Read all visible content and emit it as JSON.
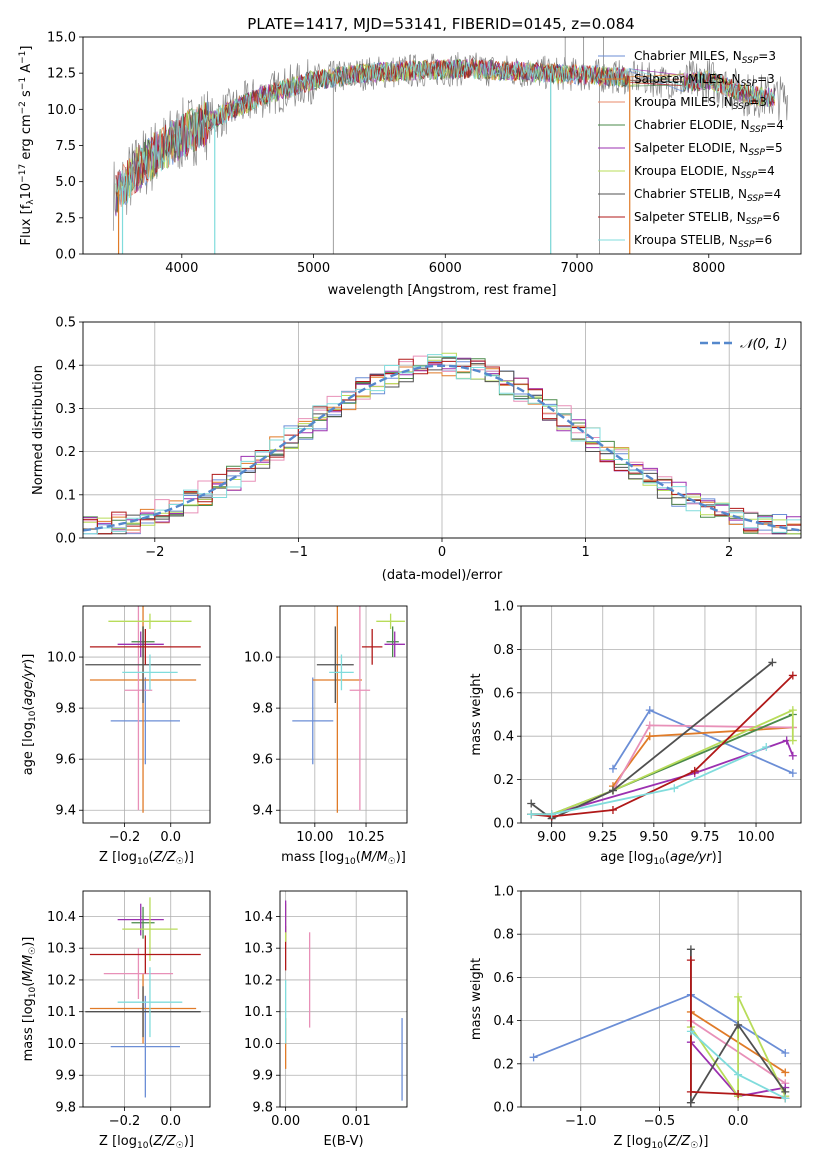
{
  "title": "PLATE=1417, MJD=53141, FIBERID=0145, z=0.084",
  "colors": {
    "blue": "#6b8ed6",
    "orange": "#e07b28",
    "salmon": "#e8896a",
    "gray": "#808080",
    "purple": "#9b30b0",
    "lime": "#b8dc5a",
    "dark": "#505050",
    "red": "#b01818",
    "cyan": "#80dcdc",
    "green": "#4a8a4a",
    "pink": "#e890b8",
    "ygreen": "#8ad040"
  },
  "chart_data": [
    {
      "id": "spectrum",
      "type": "line",
      "xlabel": "wavelength [Angstrom, rest frame]",
      "ylabel": "Flux [f_λ10^-17 erg cm^-2 s^-1 A^-1]",
      "xlim": [
        3250,
        8700
      ],
      "ylim": [
        0,
        15
      ],
      "xticks": [
        4000,
        5000,
        6000,
        7000,
        8000
      ],
      "yticks": [
        0.0,
        2.5,
        5.0,
        7.5,
        10.0,
        12.5,
        15.0
      ],
      "ytick_labels": [
        "0.0",
        "2.5",
        "5.0",
        "7.5",
        "10.0",
        "12.5",
        "15.0"
      ],
      "grid": false,
      "legend": "top-right",
      "continuum": {
        "x": [
          3500,
          3700,
          4000,
          4300,
          4600,
          5000,
          5400,
          5800,
          6200,
          6600,
          7000,
          7400,
          7800,
          8000,
          8300,
          8500
        ],
        "y": [
          4.2,
          6.2,
          8.2,
          9.6,
          10.9,
          12.0,
          12.5,
          12.7,
          12.8,
          12.6,
          12.4,
          12.2,
          11.8,
          12.0,
          11.0,
          10.8
        ]
      },
      "series": [
        {
          "name": "Chabrier MILES, N_SSP=3",
          "color": "#6b8ed6"
        },
        {
          "name": "Salpeter MILES, N_SSP=3",
          "color": "#e07b28"
        },
        {
          "name": "Kroupa MILES, N_SSP=3",
          "color": "#e8896a"
        },
        {
          "name": "Chabrier ELODIE, N_SSP=4",
          "color": "#4a8a4a"
        },
        {
          "name": "Salpeter ELODIE, N_SSP=5",
          "color": "#9b30b0"
        },
        {
          "name": "Kroupa ELODIE, N_SSP=4",
          "color": "#b8dc5a"
        },
        {
          "name": "Chabrier STELIB, N_SSP=4",
          "color": "#505050"
        },
        {
          "name": "Salpeter STELIB, N_SSP=6",
          "color": "#b01818"
        },
        {
          "name": "Kroupa STELIB, N_SSP=6",
          "color": "#80dcdc"
        }
      ]
    },
    {
      "id": "residuals",
      "type": "line",
      "xlabel": "(data-model)/error",
      "ylabel": "Normed distribution",
      "xlim": [
        -2.5,
        2.5
      ],
      "ylim": [
        0,
        0.5
      ],
      "xticks": [
        -2,
        -1,
        0,
        1,
        2
      ],
      "xtick_labels": [
        "−2",
        "−1",
        "0",
        "1",
        "2"
      ],
      "yticks": [
        0.0,
        0.1,
        0.2,
        0.3,
        0.4,
        0.5
      ],
      "ytick_labels": [
        "0.0",
        "0.1",
        "0.2",
        "0.3",
        "0.4",
        "0.5"
      ],
      "grid": true,
      "legend": "top-right",
      "gaussian_label": "𝒩(0, 1)",
      "bin_width": 0.1
    },
    {
      "id": "age_vs_Z",
      "type": "scatter",
      "xlabel": "Z [log10(Z/Z☉)]",
      "ylabel": "age  [log10(age/yr)]",
      "xlim": [
        -0.38,
        0.17
      ],
      "ylim": [
        9.35,
        10.2
      ],
      "xticks": [
        -0.2,
        0.0
      ],
      "xtick_labels": [
        "−0.2",
        "0.0"
      ],
      "yticks": [
        9.4,
        9.6,
        9.8,
        10.0
      ],
      "ytick_labels": [
        "9.4",
        "9.6",
        "9.8",
        "10.0"
      ],
      "grid": true,
      "points": [
        {
          "c": "#6b8ed6",
          "x": -0.11,
          "xe": 0.15,
          "y": 9.75,
          "ye": 0.17
        },
        {
          "c": "#e07b28",
          "x": -0.12,
          "xe": 0.23,
          "y": 9.91,
          "ye": 0.52
        },
        {
          "c": "#e890b8",
          "x": -0.14,
          "xe": 0.06,
          "y": 9.87,
          "ye": 0.47
        },
        {
          "c": "#4a8a4a",
          "x": -0.12,
          "xe": 0.05,
          "y": 10.06,
          "ye": 0.06
        },
        {
          "c": "#9b30b0",
          "x": -0.13,
          "xe": 0.1,
          "y": 10.05,
          "ye": 0.05
        },
        {
          "c": "#b8dc5a",
          "x": -0.09,
          "xe": 0.18,
          "y": 10.14,
          "ye": 0.03
        },
        {
          "c": "#505050",
          "x": -0.12,
          "xe": 0.25,
          "y": 9.97,
          "ye": 0.15
        },
        {
          "c": "#b01818",
          "x": -0.11,
          "xe": 0.24,
          "y": 10.04,
          "ye": 0.07
        },
        {
          "c": "#80dcdc",
          "x": -0.09,
          "xe": 0.12,
          "y": 9.94,
          "ye": 0.07
        }
      ]
    },
    {
      "id": "age_vs_mass",
      "type": "scatter",
      "xlabel": "mass [log10(M/M☉)]",
      "ylabel": "",
      "xlim": [
        9.83,
        10.45
      ],
      "ylim": [
        9.35,
        10.2
      ],
      "xticks": [
        10.0,
        10.25
      ],
      "xtick_labels": [
        "10.00",
        "10.25"
      ],
      "yticks": [
        9.4,
        9.6,
        9.8,
        10.0
      ],
      "ytick_labels": [
        "9.4",
        "9.6",
        "9.8",
        "10.0"
      ],
      "grid": true,
      "points": [
        {
          "c": "#6b8ed6",
          "x": 9.99,
          "xe": 0.1,
          "y": 9.75,
          "ye": 0.17
        },
        {
          "c": "#e07b28",
          "x": 10.11,
          "xe": 0.12,
          "y": 9.91,
          "ye": 0.52
        },
        {
          "c": "#e890b8",
          "x": 10.22,
          "xe": 0.05,
          "y": 9.87,
          "ye": 0.47
        },
        {
          "c": "#4a8a4a",
          "x": 10.38,
          "xe": 0.03,
          "y": 10.06,
          "ye": 0.06
        },
        {
          "c": "#9b30b0",
          "x": 10.39,
          "xe": 0.05,
          "y": 10.05,
          "ye": 0.05
        },
        {
          "c": "#b8dc5a",
          "x": 10.37,
          "xe": 0.07,
          "y": 10.14,
          "ye": 0.03
        },
        {
          "c": "#505050",
          "x": 10.1,
          "xe": 0.09,
          "y": 9.97,
          "ye": 0.15
        },
        {
          "c": "#b01818",
          "x": 10.28,
          "xe": 0.05,
          "y": 10.04,
          "ye": 0.07
        },
        {
          "c": "#80dcdc",
          "x": 10.13,
          "xe": 0.06,
          "y": 9.94,
          "ye": 0.07
        }
      ]
    },
    {
      "id": "weight_vs_age",
      "type": "line",
      "xlabel": "age  [log10(age/yr)]",
      "ylabel": "mass weight",
      "xlim": [
        8.85,
        10.22
      ],
      "ylim": [
        0,
        1
      ],
      "xticks": [
        9.0,
        9.25,
        9.5,
        9.75,
        10.0
      ],
      "xtick_labels": [
        "9.00",
        "9.25",
        "9.50",
        "9.75",
        "10.00"
      ],
      "yticks": [
        0.0,
        0.2,
        0.4,
        0.6,
        0.8,
        1.0
      ],
      "ytick_labels": [
        "0.0",
        "0.2",
        "0.4",
        "0.6",
        "0.8",
        "1.0"
      ],
      "grid": true,
      "series": [
        {
          "c": "#6b8ed6",
          "x": [
            9.3,
            9.48,
            10.18
          ],
          "y": [
            0.25,
            0.52,
            0.23
          ]
        },
        {
          "c": "#e07b28",
          "x": [
            9.3,
            9.48,
            10.18
          ],
          "y": [
            0.17,
            0.4,
            0.44
          ]
        },
        {
          "c": "#e890b8",
          "x": [
            9.3,
            9.48,
            10.18
          ],
          "y": [
            0.15,
            0.45,
            0.44
          ]
        },
        {
          "c": "#4a8a4a",
          "x": [
            8.9,
            9.0,
            9.3,
            10.18
          ],
          "y": [
            0.04,
            0.04,
            0.15,
            0.5
          ]
        },
        {
          "c": "#9b30b0",
          "x": [
            8.9,
            9.0,
            9.7,
            10.15,
            10.18
          ],
          "y": [
            0.04,
            0.04,
            0.23,
            0.38,
            0.31
          ]
        },
        {
          "c": "#b8dc5a",
          "x": [
            8.9,
            9.0,
            9.3,
            10.18,
            10.18
          ],
          "y": [
            0.04,
            0.04,
            0.15,
            0.52,
            0.38
          ]
        },
        {
          "c": "#505050",
          "x": [
            8.9,
            9.0,
            9.3,
            10.08
          ],
          "y": [
            0.09,
            0.02,
            0.15,
            0.74
          ]
        },
        {
          "c": "#b01818",
          "x": [
            8.9,
            9.0,
            9.3,
            9.7,
            10.18
          ],
          "y": [
            0.04,
            0.03,
            0.06,
            0.24,
            0.68
          ]
        },
        {
          "c": "#80dcdc",
          "x": [
            8.9,
            9.0,
            9.6,
            10.05
          ],
          "y": [
            0.04,
            0.04,
            0.16,
            0.35
          ]
        }
      ]
    },
    {
      "id": "mass_vs_Z",
      "type": "scatter",
      "xlabel": "Z [log10(Z/Z☉)]",
      "ylabel": "mass [log10(M/M☉)]",
      "xlim": [
        -0.38,
        0.17
      ],
      "ylim": [
        9.8,
        10.48
      ],
      "xticks": [
        -0.2,
        0.0
      ],
      "xtick_labels": [
        "−0.2",
        "0.0"
      ],
      "yticks": [
        9.8,
        9.9,
        10.0,
        10.1,
        10.2,
        10.3,
        10.4
      ],
      "ytick_labels": [
        "9.8",
        "9.9",
        "10.0",
        "10.1",
        "10.2",
        "10.3",
        "10.4"
      ],
      "grid": true,
      "points": [
        {
          "c": "#6b8ed6",
          "x": -0.11,
          "xe": 0.15,
          "y": 9.99,
          "ye": 0.16
        },
        {
          "c": "#e07b28",
          "x": -0.12,
          "xe": 0.23,
          "y": 10.11,
          "ye": 0.11
        },
        {
          "c": "#e890b8",
          "x": -0.14,
          "xe": 0.15,
          "y": 10.22,
          "ye": 0.08
        },
        {
          "c": "#4a8a4a",
          "x": -0.12,
          "xe": 0.05,
          "y": 10.38,
          "ye": 0.05
        },
        {
          "c": "#9b30b0",
          "x": -0.13,
          "xe": 0.1,
          "y": 10.39,
          "ye": 0.05
        },
        {
          "c": "#b8dc5a",
          "x": -0.09,
          "xe": 0.12,
          "y": 10.36,
          "ye": 0.1
        },
        {
          "c": "#505050",
          "x": -0.12,
          "xe": 0.25,
          "y": 10.1,
          "ye": 0.08
        },
        {
          "c": "#b01818",
          "x": -0.11,
          "xe": 0.24,
          "y": 10.28,
          "ye": 0.06
        },
        {
          "c": "#80dcdc",
          "x": -0.09,
          "xe": 0.14,
          "y": 10.13,
          "ye": 0.11
        }
      ]
    },
    {
      "id": "mass_vs_EBV",
      "type": "scatter",
      "xlabel": "E(B-V)",
      "ylabel": "",
      "xlim": [
        -0.0008,
        0.0172
      ],
      "ylim": [
        9.8,
        10.48
      ],
      "xticks": [
        0.0,
        0.01
      ],
      "xtick_labels": [
        "0.00",
        "0.01"
      ],
      "yticks": [
        9.8,
        9.9,
        10.0,
        10.1,
        10.2,
        10.3,
        10.4
      ],
      "ytick_labels": [
        "9.8",
        "9.9",
        "10.0",
        "10.1",
        "10.2",
        "10.3",
        "10.4"
      ],
      "grid": true,
      "points": [
        {
          "c": "#6b8ed6",
          "x": 0.0165,
          "y": 9.95,
          "ye": 0.13
        },
        {
          "c": "#e890b8",
          "x": 0.0034,
          "y": 10.2,
          "ye": 0.15
        },
        {
          "c": "#e07b28",
          "x": 0.0,
          "y": 10.0,
          "ye": 0.08
        },
        {
          "c": "#b01818",
          "x": 0.0,
          "y": 10.3,
          "ye": 0.07
        },
        {
          "c": "#b8dc5a",
          "x": 0.0,
          "y": 10.38,
          "ye": 0.06
        },
        {
          "c": "#80dcdc",
          "x": 0.0,
          "y": 10.1,
          "ye": 0.1
        },
        {
          "c": "#9b30b0",
          "x": 0.0,
          "y": 10.4,
          "ye": 0.05
        }
      ]
    },
    {
      "id": "weight_vs_Z",
      "type": "line",
      "xlabel": "Z [log10(Z/Z☉)]",
      "ylabel": "mass weight",
      "xlim": [
        -1.38,
        0.4
      ],
      "ylim": [
        0,
        1
      ],
      "xticks": [
        -1.0,
        -0.5,
        0.0
      ],
      "xtick_labels": [
        "−1.0",
        "−0.5",
        "0.0"
      ],
      "yticks": [
        0.0,
        0.2,
        0.4,
        0.6,
        0.8,
        1.0
      ],
      "ytick_labels": [
        "0.0",
        "0.2",
        "0.4",
        "0.6",
        "0.8",
        "1.0"
      ],
      "grid": true,
      "series": [
        {
          "c": "#6b8ed6",
          "x": [
            -1.3,
            -0.3,
            0.3
          ],
          "y": [
            0.23,
            0.52,
            0.25
          ]
        },
        {
          "c": "#e07b28",
          "x": [
            -0.3,
            0.3
          ],
          "y": [
            0.44,
            0.16
          ]
        },
        {
          "c": "#e890b8",
          "x": [
            -0.3,
            0.3
          ],
          "y": [
            0.4,
            0.11
          ]
        },
        {
          "c": "#9b30b0",
          "x": [
            -0.3,
            0.0,
            0.3
          ],
          "y": [
            0.3,
            0.05,
            0.09
          ]
        },
        {
          "c": "#b8dc5a",
          "x": [
            -0.3,
            0.0,
            0.0,
            0.3
          ],
          "y": [
            0.37,
            0.05,
            0.51,
            0.05
          ]
        },
        {
          "c": "#505050",
          "x": [
            -0.3,
            -0.3,
            0.0,
            0.3
          ],
          "y": [
            0.73,
            0.02,
            0.38,
            0.07
          ]
        },
        {
          "c": "#b01818",
          "x": [
            -0.3,
            -0.3,
            0.0,
            0.3
          ],
          "y": [
            0.68,
            0.07,
            0.06,
            0.04
          ]
        },
        {
          "c": "#80dcdc",
          "x": [
            -0.3,
            0.0,
            0.3
          ],
          "y": [
            0.35,
            0.15,
            0.04
          ]
        }
      ]
    }
  ]
}
